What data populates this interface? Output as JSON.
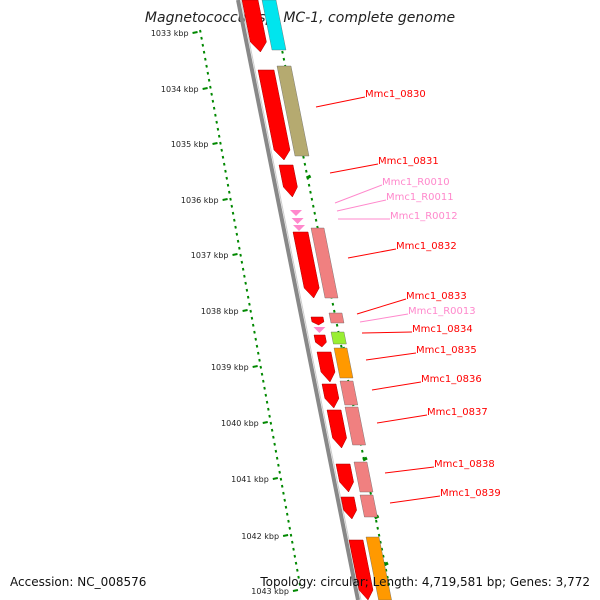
{
  "title": "Magnetococcus sp. MC-1, complete genome",
  "accession": "Accession: NC_008576",
  "topology": "Topology: circular; Length: 4,719,581 bp; Genes: 3,772",
  "scale_labels": [
    "1033 kbp",
    "1034 kbp",
    "1035 kbp",
    "1036 kbp",
    "1037 kbp",
    "1038 kbp",
    "1039 kbp",
    "1040 kbp",
    "1041 kbp",
    "1042 kbp",
    "1043 kbp"
  ],
  "colors": {
    "cds": "#ff0000",
    "rna": "#ff88cc",
    "cog_tan": "#b5aa70",
    "cog_cyan": "#00e5ee",
    "cog_salmon": "#f08080",
    "cog_orange": "#ff9900",
    "cog_lime": "#99ee33",
    "tick": "#008800",
    "backbone": "#888888"
  },
  "gene_labels": [
    {
      "text": "Mmc1_0830",
      "kind": "cds"
    },
    {
      "text": "Mmc1_0831",
      "kind": "cds"
    },
    {
      "text": "Mmc1_R0010",
      "kind": "rna"
    },
    {
      "text": "Mmc1_R0011",
      "kind": "rna"
    },
    {
      "text": "Mmc1_R0012",
      "kind": "rna"
    },
    {
      "text": "Mmc1_0832",
      "kind": "cds"
    },
    {
      "text": "Mmc1_0833",
      "kind": "cds"
    },
    {
      "text": "Mmc1_R0013",
      "kind": "rna"
    },
    {
      "text": "Mmc1_0834",
      "kind": "cds"
    },
    {
      "text": "Mmc1_0835",
      "kind": "cds"
    },
    {
      "text": "Mmc1_0836",
      "kind": "cds"
    },
    {
      "text": "Mmc1_0837",
      "kind": "cds"
    },
    {
      "text": "Mmc1_0838",
      "kind": "cds"
    },
    {
      "text": "Mmc1_0839",
      "kind": "cds"
    }
  ]
}
